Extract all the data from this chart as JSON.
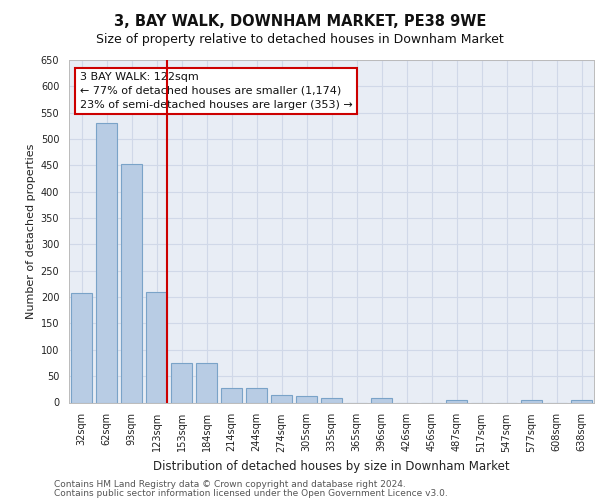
{
  "title": "3, BAY WALK, DOWNHAM MARKET, PE38 9WE",
  "subtitle": "Size of property relative to detached houses in Downham Market",
  "xlabel": "Distribution of detached houses by size in Downham Market",
  "ylabel": "Number of detached properties",
  "categories": [
    "32sqm",
    "62sqm",
    "93sqm",
    "123sqm",
    "153sqm",
    "184sqm",
    "214sqm",
    "244sqm",
    "274sqm",
    "305sqm",
    "335sqm",
    "365sqm",
    "396sqm",
    "426sqm",
    "456sqm",
    "487sqm",
    "517sqm",
    "547sqm",
    "577sqm",
    "608sqm",
    "638sqm"
  ],
  "values": [
    207,
    530,
    452,
    210,
    75,
    75,
    27,
    27,
    14,
    12,
    8,
    0,
    8,
    0,
    0,
    5,
    0,
    0,
    5,
    0,
    5
  ],
  "bar_color": "#b8cce4",
  "bar_edgecolor": "#7aa3c8",
  "bar_linewidth": 0.8,
  "vline_x_index": 3,
  "vline_color": "#cc0000",
  "vline_linewidth": 1.5,
  "annotation_text": "3 BAY WALK: 122sqm\n← 77% of detached houses are smaller (1,174)\n23% of semi-detached houses are larger (353) →",
  "annotation_box_edgecolor": "#cc0000",
  "annotation_box_facecolor": "#ffffff",
  "ylim": [
    0,
    650
  ],
  "yticks": [
    0,
    50,
    100,
    150,
    200,
    250,
    300,
    350,
    400,
    450,
    500,
    550,
    600,
    650
  ],
  "grid_color": "#d0d8e8",
  "background_color": "#e8edf5",
  "footer_line1": "Contains HM Land Registry data © Crown copyright and database right 2024.",
  "footer_line2": "Contains public sector information licensed under the Open Government Licence v3.0.",
  "title_fontsize": 10.5,
  "subtitle_fontsize": 9,
  "xlabel_fontsize": 8.5,
  "ylabel_fontsize": 8,
  "tick_fontsize": 7,
  "footer_fontsize": 6.5
}
